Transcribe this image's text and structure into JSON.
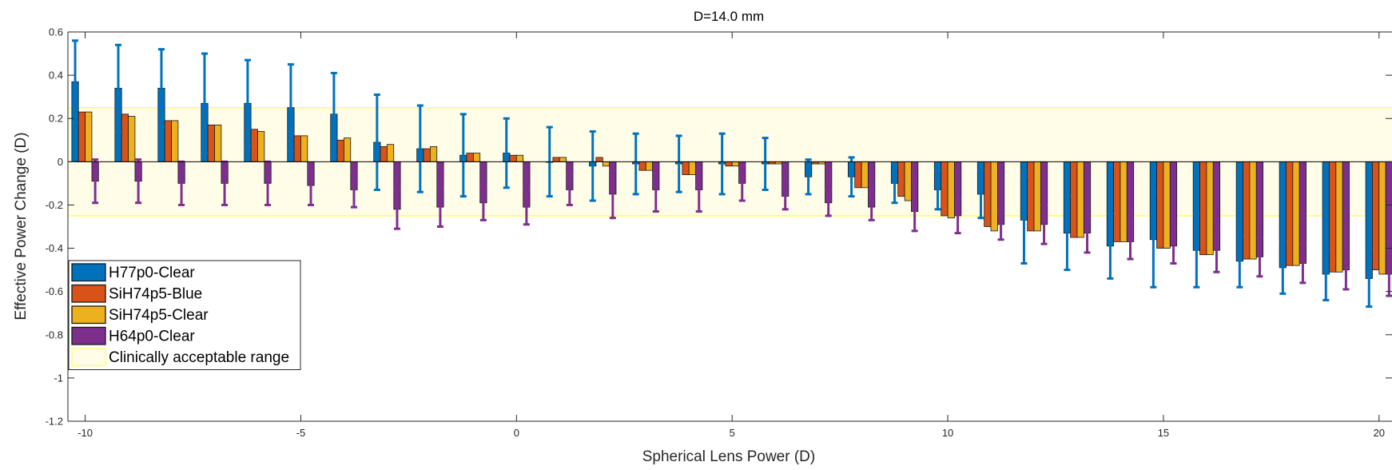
{
  "chart_data": {
    "type": "bar",
    "title": "D=14.0 mm",
    "xlabel": "Spherical Lens Power (D)",
    "ylabel": "Effective Power Change (D)",
    "xlim": [
      -10.4,
      20.3
    ],
    "ylim": [
      -1.2,
      0.6
    ],
    "xticks": [
      -10,
      -5,
      0,
      5,
      10,
      15,
      20
    ],
    "yticks": [
      -1.2,
      -1,
      -0.8,
      -0.6,
      -0.4,
      -0.2,
      0,
      0.2,
      0.4,
      0.6
    ],
    "categories": [
      -10,
      -9,
      -8,
      -7,
      -6,
      -5,
      -4,
      -3,
      -2,
      -1,
      0,
      1,
      2,
      3,
      4,
      5,
      6,
      7,
      8,
      9,
      10,
      11,
      12,
      13,
      14,
      15,
      16,
      17,
      18,
      19,
      20
    ],
    "series": [
      {
        "name": "H77p0-Clear",
        "color": "#0072BD",
        "values": [
          0.37,
          0.34,
          0.34,
          0.27,
          0.27,
          0.25,
          0.22,
          0.09,
          0.06,
          0.03,
          0.04,
          0.0,
          -0.02,
          -0.01,
          -0.01,
          -0.01,
          -0.01,
          -0.07,
          -0.07,
          -0.1,
          -0.13,
          -0.15,
          -0.27,
          -0.33,
          -0.39,
          -0.36,
          -0.41,
          -0.46,
          -0.49,
          -0.52,
          -0.54
        ],
        "errors": [
          0.19,
          0.2,
          0.18,
          0.23,
          0.2,
          0.2,
          0.19,
          0.22,
          0.2,
          0.19,
          0.16,
          0.16,
          0.16,
          0.14,
          0.13,
          0.14,
          0.12,
          0.08,
          0.09,
          0.09,
          0.09,
          0.11,
          0.2,
          0.17,
          0.15,
          0.22,
          0.17,
          0.12,
          0.12,
          0.12,
          0.13
        ]
      },
      {
        "name": "SiH74p5-Blue",
        "color": "#D95319",
        "values": [
          0.23,
          0.22,
          0.19,
          0.17,
          0.15,
          0.12,
          0.1,
          0.07,
          0.06,
          0.04,
          0.03,
          0.02,
          0.02,
          -0.04,
          -0.06,
          -0.02,
          -0.01,
          -0.01,
          -0.12,
          -0.16,
          -0.25,
          -0.3,
          -0.32,
          -0.35,
          -0.37,
          -0.4,
          -0.43,
          -0.45,
          -0.48,
          -0.51,
          -0.5
        ]
      },
      {
        "name": "SiH74p5-Clear",
        "color": "#EDB120",
        "values": [
          0.23,
          0.21,
          0.19,
          0.17,
          0.14,
          0.12,
          0.11,
          0.08,
          0.07,
          0.04,
          0.03,
          0.02,
          -0.02,
          -0.04,
          -0.06,
          -0.02,
          -0.01,
          -0.01,
          -0.12,
          -0.18,
          -0.26,
          -0.32,
          -0.32,
          -0.35,
          -0.37,
          -0.4,
          -0.43,
          -0.45,
          -0.48,
          -0.51,
          -0.52
        ]
      },
      {
        "name": "H64p0-Clear",
        "color": "#7E2F8E",
        "values": [
          -0.09,
          -0.09,
          -0.1,
          -0.1,
          -0.1,
          -0.11,
          -0.13,
          -0.22,
          -0.21,
          -0.19,
          -0.21,
          -0.13,
          -0.15,
          -0.13,
          -0.13,
          -0.1,
          -0.16,
          -0.19,
          -0.21,
          -0.23,
          -0.25,
          -0.29,
          -0.29,
          -0.33,
          -0.37,
          -0.39,
          -0.41,
          -0.44,
          -0.47,
          -0.5,
          -0.52
        ],
        "errors": [
          0.1,
          0.1,
          0.1,
          0.1,
          0.1,
          0.09,
          0.08,
          0.09,
          0.09,
          0.08,
          0.08,
          0.07,
          0.11,
          0.1,
          0.1,
          0.08,
          0.06,
          0.06,
          0.06,
          0.09,
          0.08,
          0.07,
          0.09,
          0.09,
          0.08,
          0.08,
          0.1,
          0.09,
          0.09,
          0.09,
          0.1
        ]
      }
    ],
    "band": {
      "name": "Clinically acceptable range",
      "from": -0.25,
      "to": 0.25,
      "color": "#FFFF66"
    },
    "legend_position": "bottom-left"
  }
}
